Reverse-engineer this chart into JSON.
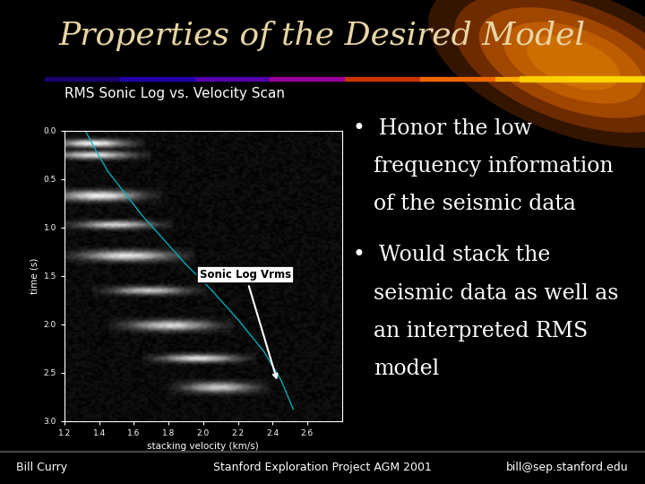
{
  "title": "Properties of the Desired Model",
  "subtitle": "RMS Sonic Log vs. Velocity Scan",
  "bg_color": "#000000",
  "title_color": "#e8d5a3",
  "title_fontsize": 26,
  "subtitle_color": "#ffffff",
  "subtitle_fontsize": 11,
  "bullet1_lines": [
    "Honor the low",
    "frequency information",
    "of the seismic data"
  ],
  "bullet2_lines": [
    "Would stack the",
    "seismic data as well as",
    "an interpreted RMS",
    "model"
  ],
  "bullet_color": "#ffffff",
  "bullet_fontsize": 17,
  "footer_left": "Bill Curry",
  "footer_center": "Stanford Exploration Project AGM 2001",
  "footer_right": "bill@sep.stanford.edu",
  "footer_color": "#ffffff",
  "footer_fontsize": 9,
  "annotation_label": "Sonic Log Vrms",
  "curve_color": "#00bbcc",
  "xlabel": "stacking velocity (km/s)",
  "ylabel": "time (s)",
  "x_ticks": [
    1.2,
    1.4,
    1.6,
    1.8,
    2.0,
    2.2,
    2.4,
    2.6
  ],
  "y_ticks": [
    0,
    0.5,
    1.0,
    1.5,
    2.0,
    2.5,
    3.0
  ],
  "xlim": [
    1.2,
    2.8
  ],
  "ylim": [
    3.0,
    0.0
  ],
  "curve_x": [
    1.32,
    1.38,
    1.45,
    1.55,
    1.65,
    1.77,
    1.9,
    2.05,
    2.2,
    2.35,
    2.45,
    2.52
  ],
  "curve_y": [
    0.0,
    0.2,
    0.42,
    0.65,
    0.88,
    1.12,
    1.38,
    1.65,
    1.95,
    2.28,
    2.58,
    2.88
  ]
}
